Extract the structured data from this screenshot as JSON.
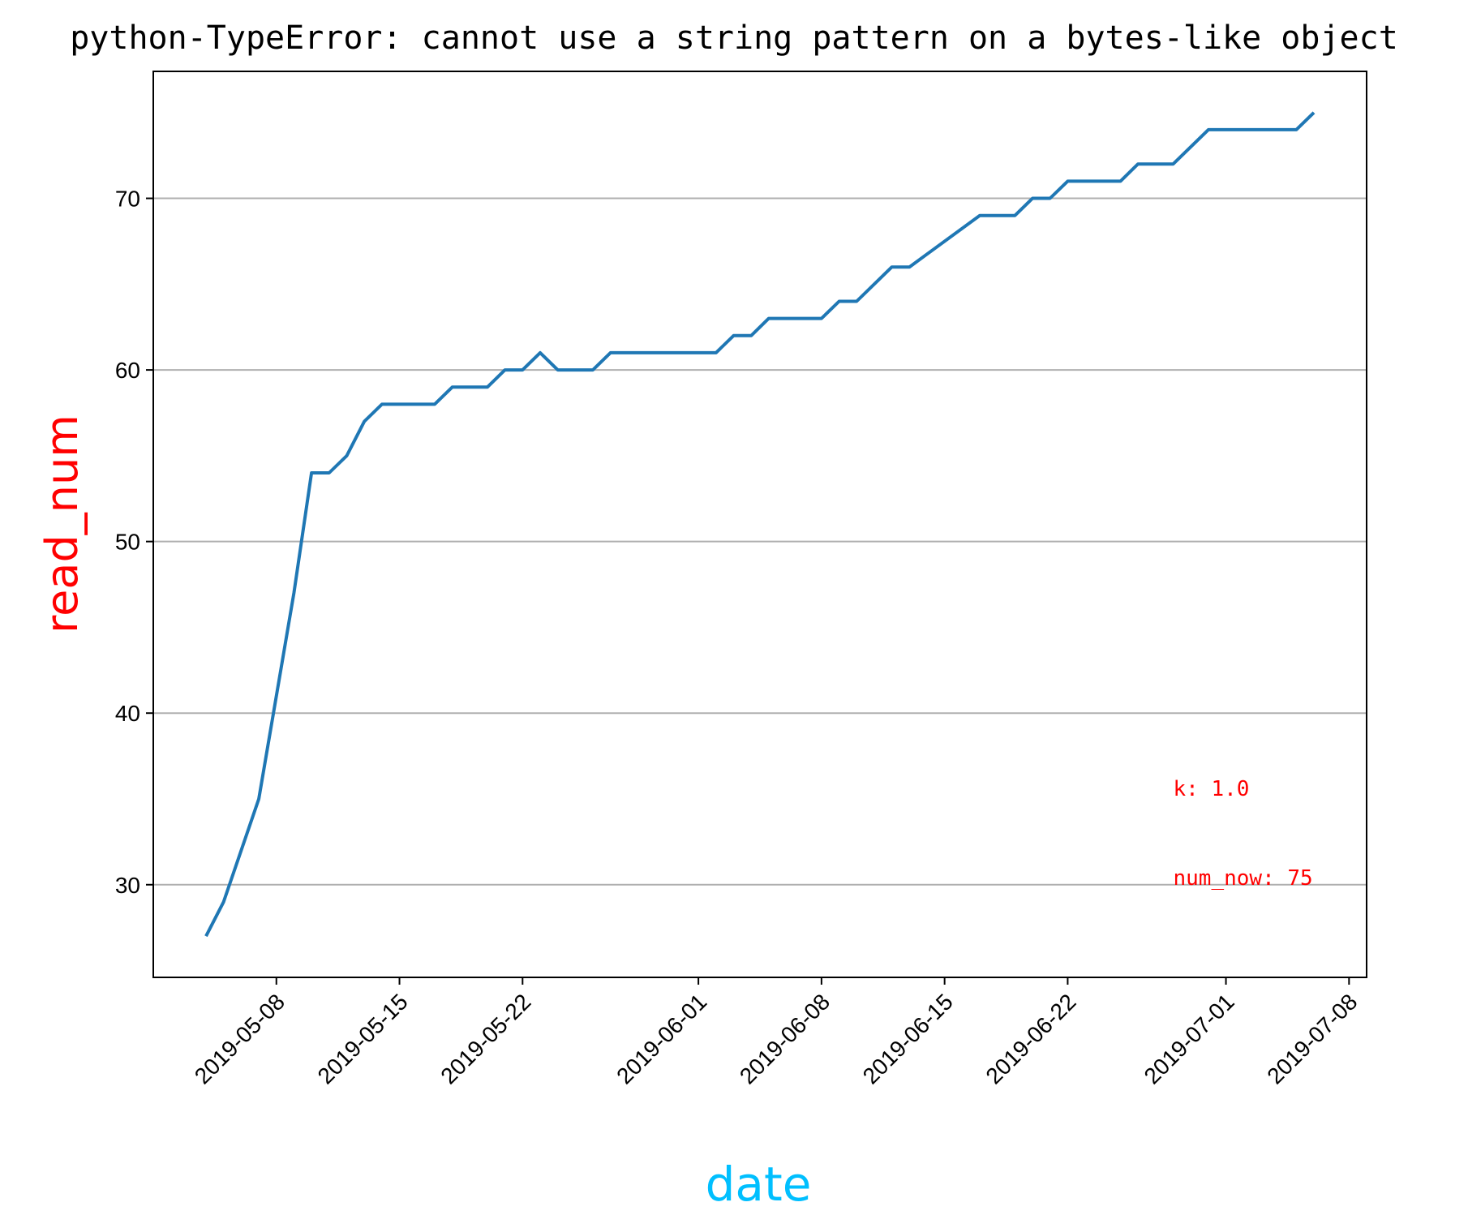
{
  "chart_data": {
    "type": "line",
    "title": "python-TypeError: cannot use a string pattern on a bytes-like object",
    "xlabel": "date",
    "ylabel": "read_num",
    "xlabel_color": "#00bfff",
    "ylabel_color": "#ff0000",
    "line_color": "#1f77b4",
    "grid": "horizontal",
    "xlim": [
      "2019-05-01",
      "2019-07-09"
    ],
    "ylim": [
      24.6,
      77.4
    ],
    "yticks": [
      30,
      40,
      50,
      60,
      70
    ],
    "xticks": [
      "2019-05-08",
      "2019-05-15",
      "2019-05-22",
      "2019-06-01",
      "2019-06-08",
      "2019-06-15",
      "2019-06-22",
      "2019-07-01",
      "2019-07-08"
    ],
    "series": [
      {
        "points": [
          [
            "2019-05-04",
            27
          ],
          [
            "2019-05-05",
            29
          ],
          [
            "2019-05-07",
            35
          ],
          [
            "2019-05-09",
            47
          ],
          [
            "2019-05-10",
            54
          ],
          [
            "2019-05-11",
            54
          ],
          [
            "2019-05-12",
            55
          ],
          [
            "2019-05-13",
            57
          ],
          [
            "2019-05-14",
            58
          ],
          [
            "2019-05-17",
            58
          ],
          [
            "2019-05-18",
            59
          ],
          [
            "2019-05-20",
            59
          ],
          [
            "2019-05-21",
            60
          ],
          [
            "2019-05-22",
            60
          ],
          [
            "2019-05-23",
            61
          ],
          [
            "2019-05-24",
            60
          ],
          [
            "2019-05-26",
            60
          ],
          [
            "2019-05-27",
            61
          ],
          [
            "2019-05-28",
            61
          ],
          [
            "2019-06-02",
            61
          ],
          [
            "2019-06-03",
            62
          ],
          [
            "2019-06-04",
            62
          ],
          [
            "2019-06-05",
            63
          ],
          [
            "2019-06-08",
            63
          ],
          [
            "2019-06-09",
            64
          ],
          [
            "2019-06-10",
            64
          ],
          [
            "2019-06-12",
            66
          ],
          [
            "2019-06-13",
            66
          ],
          [
            "2019-06-17",
            69
          ],
          [
            "2019-06-19",
            69
          ],
          [
            "2019-06-20",
            70
          ],
          [
            "2019-06-21",
            70
          ],
          [
            "2019-06-22",
            71
          ],
          [
            "2019-06-25",
            71
          ],
          [
            "2019-06-26",
            72
          ],
          [
            "2019-06-28",
            72
          ],
          [
            "2019-06-30",
            74
          ],
          [
            "2019-07-05",
            74
          ],
          [
            "2019-07-06",
            75
          ]
        ]
      }
    ],
    "annotations": [
      {
        "text": "k: 1.0",
        "x": "2019-06-28",
        "y": 35.2,
        "color": "#ff0000"
      },
      {
        "text": "num_now: 75",
        "x": "2019-06-28",
        "y": 30.0,
        "color": "#ff0000"
      }
    ]
  }
}
